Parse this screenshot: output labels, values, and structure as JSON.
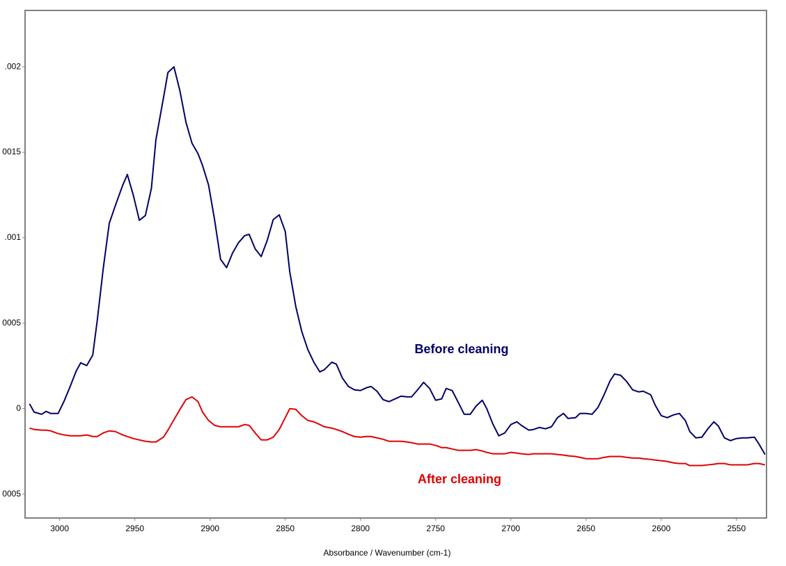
{
  "chart_data": {
    "type": "line",
    "xlabel": "Absorbance / Wavenumber (cm-1)",
    "xlim": [
      3023,
      2530
    ],
    "xticks": [
      3000,
      2950,
      2900,
      2850,
      2800,
      2750,
      2700,
      2650,
      2600,
      2550
    ],
    "ylim": [
      -0.00064,
      0.00233
    ],
    "yticks": [
      {
        "value": 0.002,
        "label": ".002"
      },
      {
        "value": 0.0015,
        "label": "0015"
      },
      {
        "value": 0.001,
        "label": ".001"
      },
      {
        "value": 0.0005,
        "label": "0005"
      },
      0,
      {
        "value": -0.0005,
        "label": "0005"
      }
    ],
    "grid": false,
    "x": [
      3020,
      3017,
      3012,
      3009,
      3006,
      3001,
      2997,
      2993,
      2989,
      2986,
      2982,
      2978,
      2975,
      2971,
      2967,
      2963,
      2958,
      2955,
      2951,
      2947,
      2943,
      2939,
      2936,
      2931,
      2928,
      2924,
      2920,
      2916,
      2912,
      2908,
      2905,
      2901,
      2897,
      2893,
      2889,
      2885,
      2881,
      2877,
      2874,
      2870,
      2866,
      2862,
      2858,
      2854,
      2850,
      2847,
      2843,
      2839,
      2835,
      2831,
      2827,
      2824,
      2819,
      2816,
      2812,
      2808,
      2804,
      2800,
      2796,
      2793,
      2789,
      2785,
      2781,
      2777,
      2773,
      2769,
      2766,
      2762,
      2758,
      2754,
      2750,
      2746,
      2743,
      2739,
      2735,
      2731,
      2727,
      2723,
      2719,
      2716,
      2712,
      2708,
      2704,
      2700,
      2696,
      2693,
      2688,
      2685,
      2681,
      2677,
      2673,
      2669,
      2665,
      2662,
      2657,
      2654,
      2650,
      2646,
      2642,
      2638,
      2634,
      2631,
      2627,
      2623,
      2619,
      2615,
      2612,
      2607,
      2604,
      2600,
      2596,
      2592,
      2588,
      2584,
      2581,
      2577,
      2573,
      2569,
      2565,
      2562,
      2558,
      2554,
      2550,
      2546,
      2543,
      2538,
      2535,
      2531
    ],
    "series": [
      {
        "name": "Before cleaning",
        "color": "#000066",
        "values": [
          2.8e-05,
          -2e-05,
          -3.3e-05,
          -1.6e-05,
          -2.8e-05,
          -2.8e-05,
          4.5e-05,
          0.00013,
          0.00022,
          0.000268,
          0.000252,
          0.000313,
          0.000516,
          0.000821,
          0.001085,
          0.001187,
          0.001309,
          0.00137,
          0.001248,
          0.001102,
          0.00113,
          0.001289,
          0.001573,
          0.001817,
          0.001967,
          0.002,
          0.001858,
          0.001675,
          0.001553,
          0.001492,
          0.001423,
          0.001309,
          0.001106,
          0.000874,
          0.000825,
          0.000911,
          0.000972,
          0.001012,
          0.00102,
          0.000935,
          0.00089,
          0.000984,
          0.001106,
          0.001134,
          0.001037,
          0.000801,
          0.000598,
          0.000451,
          0.000346,
          0.000272,
          0.000215,
          0.000228,
          0.000272,
          0.00026,
          0.000179,
          0.00013,
          0.00011,
          0.000106,
          0.000122,
          0.00013,
          0.000102,
          5.3e-05,
          4.1e-05,
          5.7e-05,
          7.3e-05,
          6.9e-05,
          6.9e-05,
          0.00011,
          0.000154,
          0.000118,
          4.9e-05,
          5.7e-05,
          0.000118,
          0.000106,
          3.7e-05,
          -3.3e-05,
          -3.3e-05,
          1.6e-05,
          4.9e-05,
          0,
          -8.9e-05,
          -0.000159,
          -0.000142,
          -9.3e-05,
          -7.7e-05,
          -9.8e-05,
          -0.000126,
          -0.000122,
          -0.00011,
          -0.000118,
          -0.000106,
          -5.3e-05,
          -2.8e-05,
          -5.7e-05,
          -5.3e-05,
          -2.8e-05,
          -2.8e-05,
          -3.3e-05,
          8e-06,
          8.1e-05,
          0.000163,
          0.000203,
          0.000195,
          0.000159,
          0.00011,
          9.8e-05,
          0.000102,
          8.1e-05,
          2e-05,
          -4.1e-05,
          -5.3e-05,
          -3.7e-05,
          -2.8e-05,
          -6.9e-05,
          -0.000134,
          -0.000171,
          -0.000167,
          -0.000118,
          -7.7e-05,
          -0.000102,
          -0.000171,
          -0.000187,
          -0.000175,
          -0.000171,
          -0.000171,
          -0.000167,
          -0.000207,
          -0.000268
        ]
      },
      {
        "name": "After cleaning",
        "color": "#e00000",
        "values": [
          -0.000114,
          -0.000122,
          -0.000126,
          -0.000126,
          -0.00013,
          -0.000146,
          -0.000154,
          -0.000159,
          -0.000159,
          -0.000159,
          -0.000154,
          -0.000163,
          -0.000163,
          -0.000142,
          -0.00013,
          -0.000134,
          -0.000154,
          -0.000163,
          -0.000175,
          -0.000183,
          -0.000191,
          -0.000195,
          -0.000195,
          -0.000167,
          -0.000126,
          -6.5e-05,
          -4e-06,
          5.3e-05,
          6.9e-05,
          4.1e-05,
          -2e-05,
          -6.9e-05,
          -9.8e-05,
          -0.000106,
          -0.000106,
          -0.000106,
          -0.000106,
          -9.3e-05,
          -9.8e-05,
          -0.000142,
          -0.000183,
          -0.000183,
          -0.000167,
          -0.000122,
          -5.3e-05,
          0,
          -4e-06,
          -4.1e-05,
          -6.9e-05,
          -7.7e-05,
          -9.3e-05,
          -0.000106,
          -0.000114,
          -0.000122,
          -0.000134,
          -0.00015,
          -0.000163,
          -0.000167,
          -0.000163,
          -0.000163,
          -0.000171,
          -0.000179,
          -0.000191,
          -0.000191,
          -0.000191,
          -0.000195,
          -0.000199,
          -0.000207,
          -0.000207,
          -0.000207,
          -0.000215,
          -0.000228,
          -0.000228,
          -0.000236,
          -0.000244,
          -0.000244,
          -0.000244,
          -0.00024,
          -0.000248,
          -0.000256,
          -0.000264,
          -0.000264,
          -0.000264,
          -0.000256,
          -0.00026,
          -0.000264,
          -0.000268,
          -0.000264,
          -0.000264,
          -0.000264,
          -0.000264,
          -0.000268,
          -0.000272,
          -0.000276,
          -0.00028,
          -0.000285,
          -0.000293,
          -0.000293,
          -0.000293,
          -0.000285,
          -0.00028,
          -0.00028,
          -0.00028,
          -0.000285,
          -0.000289,
          -0.000289,
          -0.000293,
          -0.000297,
          -0.000301,
          -0.000305,
          -0.000309,
          -0.000317,
          -0.000321,
          -0.000321,
          -0.000333,
          -0.000333,
          -0.000333,
          -0.000329,
          -0.000325,
          -0.000321,
          -0.000321,
          -0.000329,
          -0.000329,
          -0.000329,
          -0.000329,
          -0.000321,
          -0.000321,
          -0.000329
        ]
      }
    ]
  }
}
